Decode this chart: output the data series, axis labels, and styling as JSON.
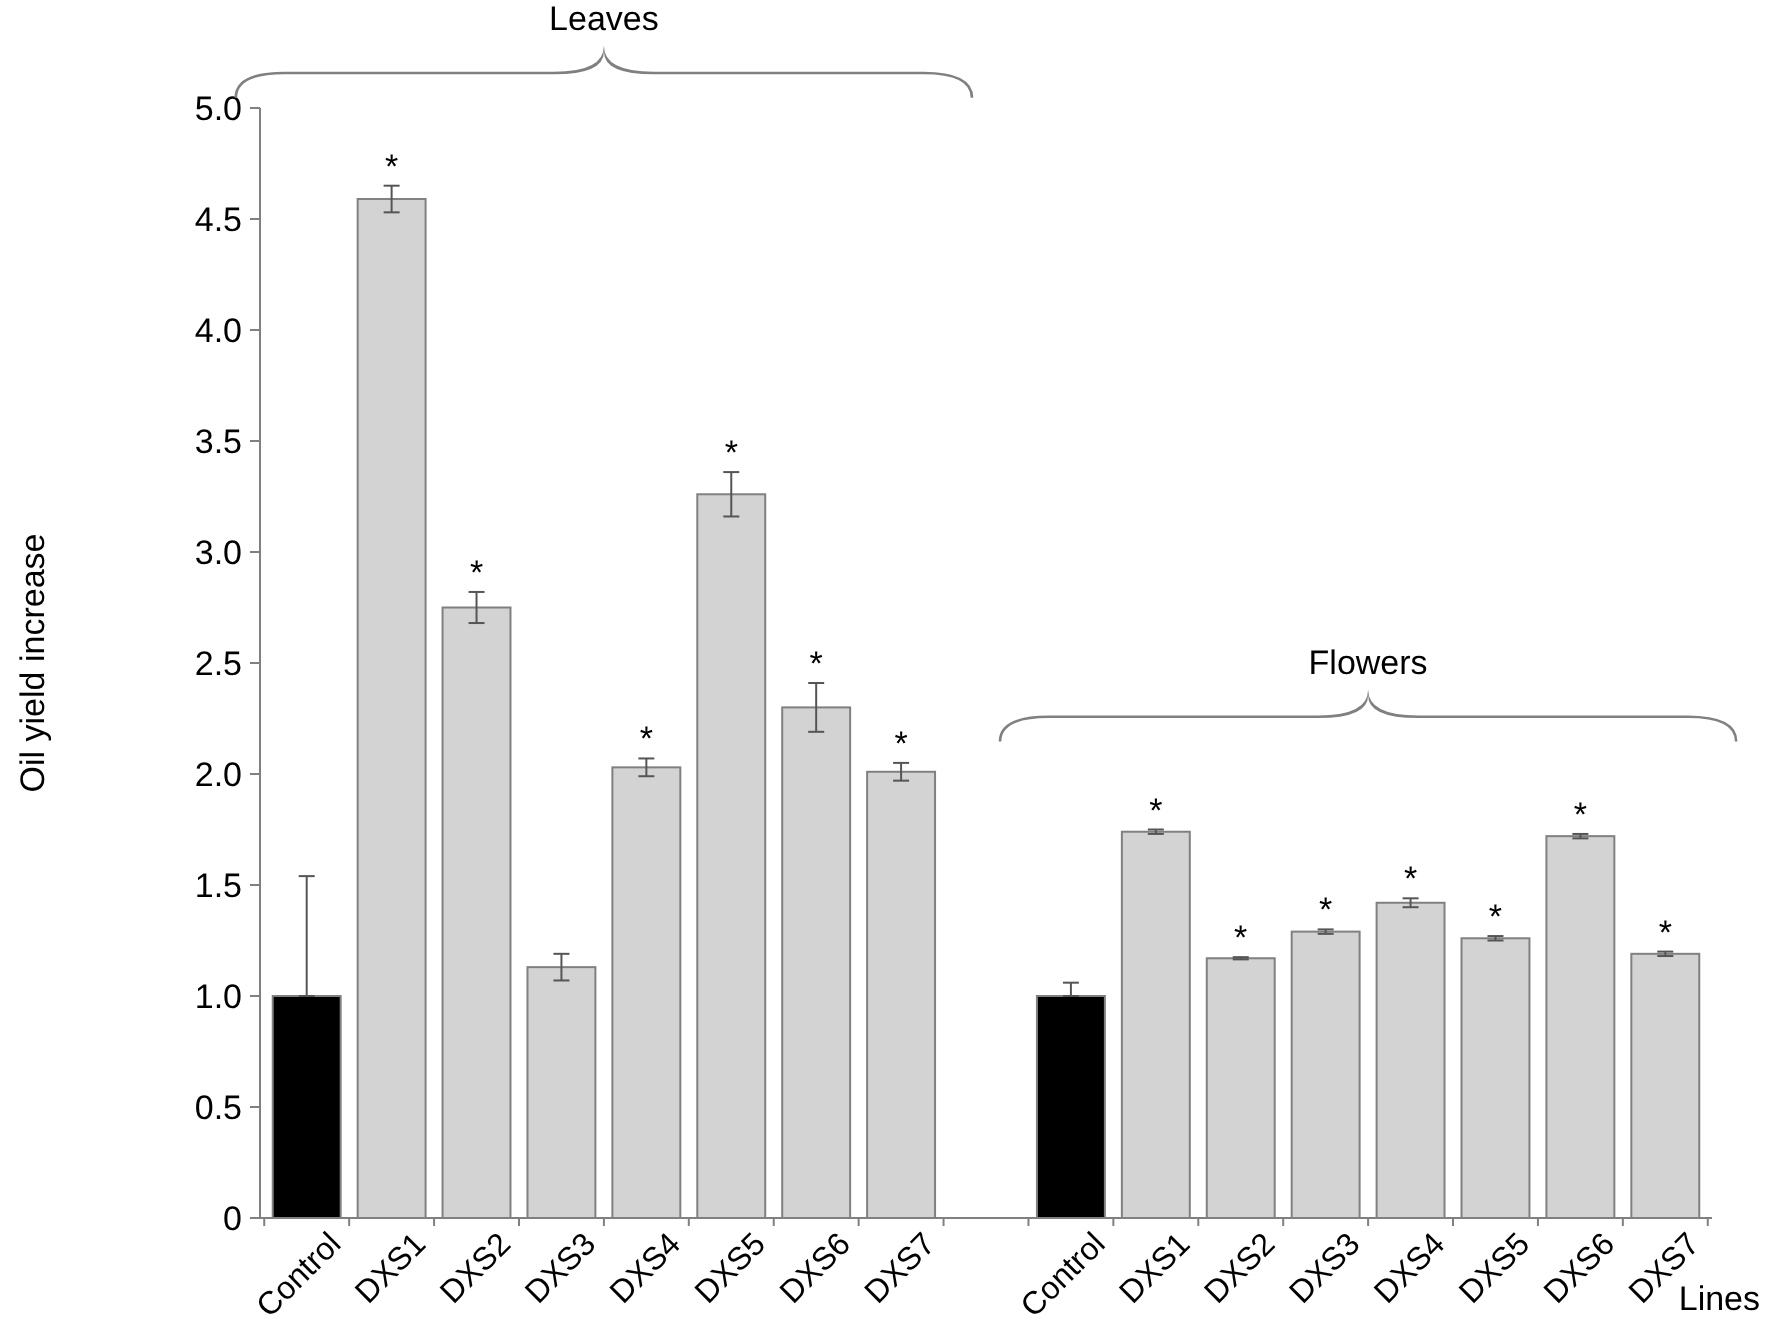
{
  "chart_data": {
    "type": "bar",
    "ylabel": "Oil yield increase",
    "xlabel": "Lines",
    "categories": [
      "Control",
      "DXS1",
      "DXS2",
      "DXS3",
      "DXS4",
      "DXS5",
      "DXS6",
      "DXS7",
      null,
      "Control",
      "DXS1",
      "DXS2",
      "DXS3",
      "DXS4",
      "DXS5",
      "DXS6",
      "DXS7"
    ],
    "series": [
      {
        "values": [
          1.0,
          4.59,
          2.75,
          1.13,
          2.03,
          3.26,
          2.3,
          2.01,
          null,
          1.0,
          1.74,
          1.17,
          1.29,
          1.42,
          1.26,
          1.72,
          1.19
        ],
        "colors": [
          "#000000",
          "#d3d3d3",
          "#d3d3d3",
          "#d3d3d3",
          "#d3d3d3",
          "#d3d3d3",
          "#d3d3d3",
          "#d3d3d3",
          null,
          "#000000",
          "#d3d3d3",
          "#d3d3d3",
          "#d3d3d3",
          "#d3d3d3",
          "#d3d3d3",
          "#d3d3d3",
          "#d3d3d3"
        ],
        "errors": [
          [
            1.0,
            1.54
          ],
          0.06,
          0.07,
          0.06,
          0.04,
          0.1,
          0.11,
          0.04,
          null,
          [
            1.0,
            1.06
          ],
          0.01,
          0.005,
          0.01,
          0.02,
          0.01,
          0.01,
          0.01
        ],
        "value_labels": [
          null,
          "*",
          "*",
          null,
          "*",
          "*",
          "*",
          "*",
          null,
          null,
          "*",
          "*",
          "*",
          "*",
          "*",
          "*",
          "*"
        ]
      }
    ],
    "ylim": [
      0,
      5
    ],
    "yticks": [
      0,
      {
        "value": 0.5,
        "label": "0.5"
      },
      {
        "value": 1,
        "label": "1.0"
      },
      {
        "value": 1.5,
        "label": "1.5"
      },
      {
        "value": 2,
        "label": "2.0"
      },
      {
        "value": 2.5,
        "label": "2.5"
      },
      {
        "value": 3,
        "label": "3.0"
      },
      {
        "value": 3.5,
        "label": "3.5"
      },
      {
        "value": 4,
        "label": "4.0"
      },
      {
        "value": 4.5,
        "label": "4.5"
      },
      {
        "value": 5,
        "label": "5.0"
      }
    ],
    "grid": false,
    "annotations": [
      "Leaves",
      "Flowers"
    ]
  }
}
